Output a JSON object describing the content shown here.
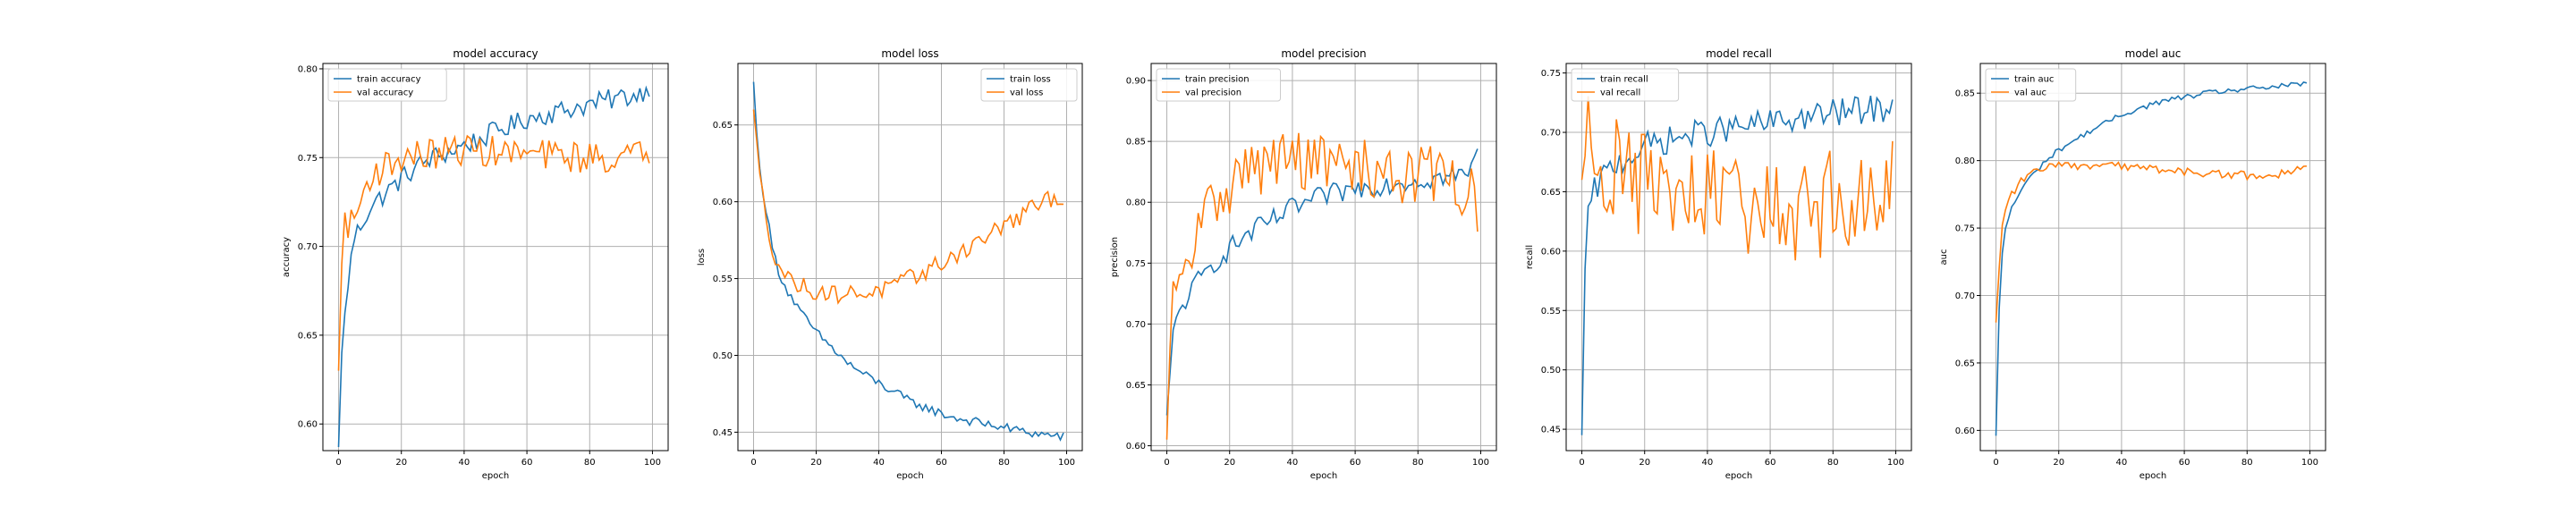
{
  "colors": {
    "train": "#1f77b4",
    "val": "#ff7f0e",
    "grid": "#b0b0b0",
    "axis": "#000000"
  },
  "chart_data": [
    {
      "type": "line",
      "title": "model accuracy",
      "xlabel": "epoch",
      "ylabel": "accuracy",
      "xlim": [
        -5,
        105
      ],
      "ylim": [
        0.585,
        0.803
      ],
      "xticks": [
        0,
        20,
        40,
        60,
        80,
        100
      ],
      "yticks": [
        0.6,
        0.65,
        0.7,
        0.75,
        0.8
      ],
      "ytick_labels": [
        "0.60",
        "0.65",
        "0.70",
        "0.75",
        "0.80"
      ],
      "legend": "upper-left",
      "grid": true,
      "series": [
        {
          "name": "train accuracy",
          "keypoints": [
            [
              0,
              0.587
            ],
            [
              1,
              0.64
            ],
            [
              2,
              0.66
            ],
            [
              3,
              0.68
            ],
            [
              5,
              0.705
            ],
            [
              8,
              0.715
            ],
            [
              10,
              0.722
            ],
            [
              15,
              0.73
            ],
            [
              20,
              0.738
            ],
            [
              25,
              0.745
            ],
            [
              30,
              0.75
            ],
            [
              35,
              0.753
            ],
            [
              40,
              0.757
            ],
            [
              45,
              0.76
            ],
            [
              50,
              0.765
            ],
            [
              55,
              0.768
            ],
            [
              60,
              0.772
            ],
            [
              65,
              0.774
            ],
            [
              70,
              0.776
            ],
            [
              75,
              0.778
            ],
            [
              80,
              0.78
            ],
            [
              85,
              0.782
            ],
            [
              90,
              0.784
            ],
            [
              95,
              0.785
            ],
            [
              99,
              0.79
            ]
          ],
          "noise": 0.006
        },
        {
          "name": "val accuracy",
          "keypoints": [
            [
              0,
              0.63
            ],
            [
              1,
              0.69
            ],
            [
              2,
              0.715
            ],
            [
              4,
              0.712
            ],
            [
              6,
              0.72
            ],
            [
              8,
              0.73
            ],
            [
              10,
              0.74
            ],
            [
              15,
              0.745
            ],
            [
              20,
              0.75
            ],
            [
              30,
              0.752
            ],
            [
              40,
              0.755
            ],
            [
              50,
              0.753
            ],
            [
              60,
              0.752
            ],
            [
              70,
              0.751
            ],
            [
              80,
              0.75
            ],
            [
              90,
              0.75
            ],
            [
              99,
              0.752
            ]
          ],
          "noise": 0.009
        }
      ]
    },
    {
      "type": "line",
      "title": "model loss",
      "xlabel": "epoch",
      "ylabel": "loss",
      "xlim": [
        -5,
        105
      ],
      "ylim": [
        0.438,
        0.69
      ],
      "xticks": [
        0,
        20,
        40,
        60,
        80,
        100
      ],
      "yticks": [
        0.45,
        0.5,
        0.55,
        0.6,
        0.65
      ],
      "ytick_labels": [
        "0.45",
        "0.50",
        "0.55",
        "0.60",
        "0.65"
      ],
      "legend": "upper-right",
      "grid": true,
      "series": [
        {
          "name": "train loss",
          "keypoints": [
            [
              0,
              0.678
            ],
            [
              1,
              0.645
            ],
            [
              2,
              0.62
            ],
            [
              4,
              0.595
            ],
            [
              6,
              0.57
            ],
            [
              8,
              0.555
            ],
            [
              10,
              0.545
            ],
            [
              15,
              0.528
            ],
            [
              20,
              0.515
            ],
            [
              25,
              0.505
            ],
            [
              30,
              0.495
            ],
            [
              35,
              0.488
            ],
            [
              40,
              0.482
            ],
            [
              45,
              0.476
            ],
            [
              50,
              0.47
            ],
            [
              55,
              0.466
            ],
            [
              60,
              0.462
            ],
            [
              65,
              0.459
            ],
            [
              70,
              0.457
            ],
            [
              75,
              0.455
            ],
            [
              80,
              0.453
            ],
            [
              85,
              0.451
            ],
            [
              90,
              0.449
            ],
            [
              95,
              0.448
            ],
            [
              99,
              0.447
            ]
          ],
          "noise": 0.003
        },
        {
          "name": "val loss",
          "keypoints": [
            [
              0,
              0.66
            ],
            [
              1,
              0.64
            ],
            [
              2,
              0.615
            ],
            [
              4,
              0.59
            ],
            [
              6,
              0.57
            ],
            [
              8,
              0.56
            ],
            [
              10,
              0.552
            ],
            [
              15,
              0.545
            ],
            [
              20,
              0.542
            ],
            [
              25,
              0.54
            ],
            [
              30,
              0.54
            ],
            [
              35,
              0.541
            ],
            [
              40,
              0.542
            ],
            [
              45,
              0.545
            ],
            [
              50,
              0.55
            ],
            [
              55,
              0.555
            ],
            [
              60,
              0.56
            ],
            [
              65,
              0.566
            ],
            [
              70,
              0.572
            ],
            [
              75,
              0.578
            ],
            [
              80,
              0.585
            ],
            [
              85,
              0.59
            ],
            [
              90,
              0.597
            ],
            [
              95,
              0.602
            ],
            [
              99,
              0.603
            ]
          ],
          "noise": 0.006
        }
      ]
    },
    {
      "type": "line",
      "title": "model precision",
      "xlabel": "epoch",
      "ylabel": "precision",
      "xlim": [
        -5,
        105
      ],
      "ylim": [
        0.596,
        0.914
      ],
      "xticks": [
        0,
        20,
        40,
        60,
        80,
        100
      ],
      "yticks": [
        0.6,
        0.65,
        0.7,
        0.75,
        0.8,
        0.85,
        0.9
      ],
      "ytick_labels": [
        "0.60",
        "0.65",
        "0.70",
        "0.75",
        "0.80",
        "0.85",
        "0.90"
      ],
      "legend": "upper-left",
      "grid": true,
      "series": [
        {
          "name": "train precision",
          "keypoints": [
            [
              0,
              0.625
            ],
            [
              1,
              0.66
            ],
            [
              2,
              0.69
            ],
            [
              4,
              0.71
            ],
            [
              6,
              0.72
            ],
            [
              10,
              0.735
            ],
            [
              15,
              0.75
            ],
            [
              20,
              0.762
            ],
            [
              25,
              0.772
            ],
            [
              30,
              0.78
            ],
            [
              35,
              0.787
            ],
            [
              40,
              0.795
            ],
            [
              45,
              0.8
            ],
            [
              50,
              0.805
            ],
            [
              55,
              0.808
            ],
            [
              60,
              0.811
            ],
            [
              65,
              0.813
            ],
            [
              70,
              0.815
            ],
            [
              75,
              0.817
            ],
            [
              80,
              0.818
            ],
            [
              85,
              0.82
            ],
            [
              90,
              0.821
            ],
            [
              95,
              0.822
            ],
            [
              99,
              0.838
            ]
          ],
          "noise": 0.009
        },
        {
          "name": "val precision",
          "keypoints": [
            [
              0,
              0.605
            ],
            [
              1,
              0.68
            ],
            [
              2,
              0.72
            ],
            [
              4,
              0.725
            ],
            [
              6,
              0.74
            ],
            [
              8,
              0.76
            ],
            [
              10,
              0.78
            ],
            [
              15,
              0.8
            ],
            [
              20,
              0.815
            ],
            [
              25,
              0.825
            ],
            [
              30,
              0.83
            ],
            [
              35,
              0.835
            ],
            [
              40,
              0.835
            ],
            [
              45,
              0.834
            ],
            [
              50,
              0.832
            ],
            [
              55,
              0.83
            ],
            [
              60,
              0.828
            ],
            [
              70,
              0.825
            ],
            [
              80,
              0.823
            ],
            [
              90,
              0.822
            ],
            [
              99,
              0.8
            ]
          ],
          "noise": 0.025
        }
      ]
    },
    {
      "type": "line",
      "title": "model recall",
      "xlabel": "epoch",
      "ylabel": "recall",
      "xlim": [
        -5,
        105
      ],
      "ylim": [
        0.432,
        0.758
      ],
      "xticks": [
        0,
        20,
        40,
        60,
        80,
        100
      ],
      "yticks": [
        0.45,
        0.5,
        0.55,
        0.6,
        0.65,
        0.7,
        0.75
      ],
      "ytick_labels": [
        "0.45",
        "0.50",
        "0.55",
        "0.60",
        "0.65",
        "0.70",
        "0.75"
      ],
      "legend": "upper-left",
      "grid": true,
      "series": [
        {
          "name": "train recall",
          "keypoints": [
            [
              0,
              0.445
            ],
            [
              1,
              0.585
            ],
            [
              2,
              0.63
            ],
            [
              4,
              0.65
            ],
            [
              6,
              0.66
            ],
            [
              10,
              0.672
            ],
            [
              15,
              0.68
            ],
            [
              20,
              0.688
            ],
            [
              25,
              0.692
            ],
            [
              30,
              0.695
            ],
            [
              35,
              0.698
            ],
            [
              40,
              0.7
            ],
            [
              45,
              0.702
            ],
            [
              50,
              0.704
            ],
            [
              55,
              0.706
            ],
            [
              60,
              0.708
            ],
            [
              65,
              0.71
            ],
            [
              70,
              0.712
            ],
            [
              75,
              0.714
            ],
            [
              80,
              0.716
            ],
            [
              85,
              0.718
            ],
            [
              90,
              0.719
            ],
            [
              95,
              0.72
            ],
            [
              99,
              0.722
            ]
          ],
          "noise": 0.012
        },
        {
          "name": "val recall",
          "keypoints": [
            [
              0,
              0.66
            ],
            [
              1,
              0.68
            ],
            [
              2,
              0.7
            ],
            [
              4,
              0.69
            ],
            [
              6,
              0.68
            ],
            [
              10,
              0.67
            ],
            [
              20,
              0.655
            ],
            [
              30,
              0.645
            ],
            [
              40,
              0.64
            ],
            [
              50,
              0.64
            ],
            [
              60,
              0.635
            ],
            [
              70,
              0.635
            ],
            [
              80,
              0.64
            ],
            [
              90,
              0.645
            ],
            [
              99,
              0.655
            ]
          ],
          "noise": 0.045
        }
      ]
    },
    {
      "type": "line",
      "title": "model auc",
      "xlabel": "epoch",
      "ylabel": "auc",
      "xlim": [
        -5,
        105
      ],
      "ylim": [
        0.585,
        0.872
      ],
      "xticks": [
        0,
        20,
        40,
        60,
        80,
        100
      ],
      "yticks": [
        0.6,
        0.65,
        0.7,
        0.75,
        0.8,
        0.85
      ],
      "ytick_labels": [
        "0.60",
        "0.65",
        "0.70",
        "0.75",
        "0.80",
        "0.85"
      ],
      "legend": "upper-left",
      "grid": true,
      "series": [
        {
          "name": "train auc",
          "keypoints": [
            [
              0,
              0.596
            ],
            [
              1,
              0.69
            ],
            [
              2,
              0.73
            ],
            [
              3,
              0.75
            ],
            [
              5,
              0.765
            ],
            [
              8,
              0.778
            ],
            [
              10,
              0.785
            ],
            [
              15,
              0.798
            ],
            [
              20,
              0.808
            ],
            [
              25,
              0.815
            ],
            [
              30,
              0.822
            ],
            [
              35,
              0.828
            ],
            [
              40,
              0.834
            ],
            [
              45,
              0.838
            ],
            [
              50,
              0.842
            ],
            [
              55,
              0.845
            ],
            [
              60,
              0.847
            ],
            [
              65,
              0.849
            ],
            [
              70,
              0.851
            ],
            [
              75,
              0.852
            ],
            [
              80,
              0.853
            ],
            [
              85,
              0.854
            ],
            [
              90,
              0.855
            ],
            [
              95,
              0.856
            ],
            [
              99,
              0.857
            ]
          ],
          "noise": 0.002
        },
        {
          "name": "val auc",
          "keypoints": [
            [
              0,
              0.68
            ],
            [
              1,
              0.72
            ],
            [
              2,
              0.75
            ],
            [
              3,
              0.765
            ],
            [
              5,
              0.775
            ],
            [
              8,
              0.785
            ],
            [
              10,
              0.79
            ],
            [
              15,
              0.794
            ],
            [
              20,
              0.796
            ],
            [
              30,
              0.796
            ],
            [
              40,
              0.796
            ],
            [
              50,
              0.794
            ],
            [
              60,
              0.792
            ],
            [
              70,
              0.79
            ],
            [
              80,
              0.789
            ],
            [
              90,
              0.79
            ],
            [
              99,
              0.794
            ]
          ],
          "noise": 0.003
        }
      ]
    }
  ]
}
